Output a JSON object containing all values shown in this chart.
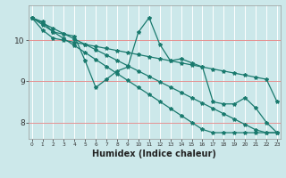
{
  "title": "",
  "xlabel": "Humidex (Indice chaleur)",
  "ylabel": "",
  "bg_color": "#cce8ea",
  "grid_color": "#ffffff",
  "line_color": "#1a7a6e",
  "ylim": [
    7.6,
    10.85
  ],
  "yticks": [
    8,
    9,
    10
  ],
  "xlim": [
    -0.3,
    23.3
  ],
  "x_ticks": [
    0,
    1,
    2,
    3,
    4,
    5,
    6,
    7,
    8,
    9,
    10,
    11,
    12,
    13,
    14,
    15,
    16,
    17,
    18,
    19,
    20,
    21,
    22,
    23
  ],
  "series": [
    [
      10.55,
      10.45,
      10.2,
      10.15,
      10.1,
      9.5,
      8.85,
      9.05,
      9.25,
      9.35,
      10.2,
      10.55,
      9.9,
      9.5,
      9.55,
      9.45,
      9.35,
      8.5,
      8.45,
      8.45,
      8.6,
      8.35,
      8.0,
      7.75
    ],
    [
      10.55,
      10.42,
      10.29,
      10.16,
      10.03,
      9.9,
      9.77,
      9.64,
      9.51,
      9.38,
      9.25,
      9.12,
      8.99,
      8.86,
      8.73,
      8.6,
      8.47,
      8.34,
      8.21,
      8.08,
      7.95,
      7.82,
      7.75,
      7.75
    ],
    [
      10.55,
      10.38,
      10.21,
      10.04,
      9.87,
      9.7,
      9.53,
      9.36,
      9.19,
      9.02,
      8.85,
      8.68,
      8.51,
      8.34,
      8.17,
      8.0,
      7.83,
      7.75,
      7.75,
      7.75,
      7.75,
      7.75,
      7.75,
      7.75
    ],
    [
      10.55,
      10.25,
      10.05,
      10.0,
      9.95,
      9.9,
      9.85,
      9.8,
      9.75,
      9.7,
      9.65,
      9.6,
      9.55,
      9.5,
      9.45,
      9.4,
      9.35,
      9.3,
      9.25,
      9.2,
      9.15,
      9.1,
      9.05,
      8.5
    ]
  ]
}
